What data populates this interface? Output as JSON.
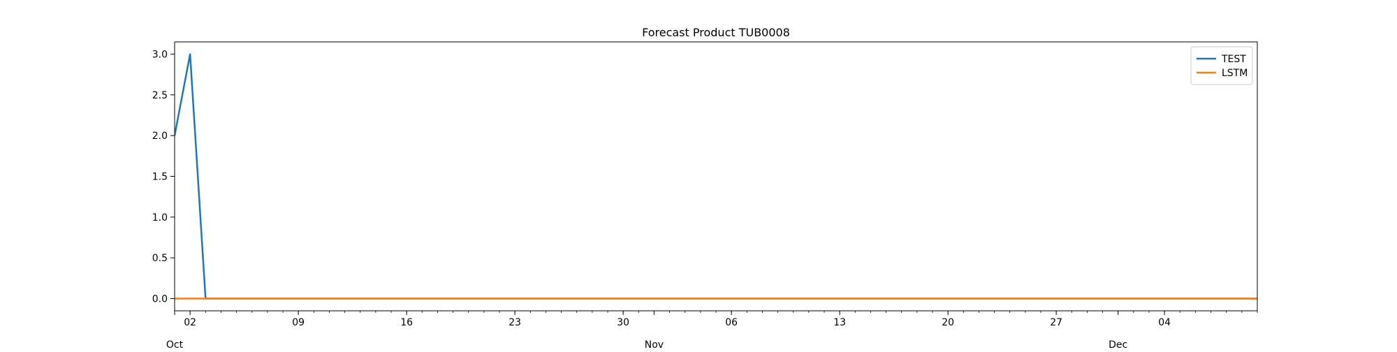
{
  "chart_data": {
    "type": "line",
    "title": "Forecast Product TUB0008",
    "xlabel": "",
    "ylabel": "",
    "x_range": [
      "2023-10-01",
      "2023-12-10"
    ],
    "ylim": [
      -0.15,
      3.15
    ],
    "y_ticks": [
      0.0,
      0.5,
      1.0,
      1.5,
      2.0,
      2.5,
      3.0
    ],
    "y_tick_labels": [
      "0.0",
      "0.5",
      "1.0",
      "1.5",
      "2.0",
      "2.5",
      "3.0"
    ],
    "x_major_ticks": [
      {
        "date": "2023-10-02",
        "label": "02"
      },
      {
        "date": "2023-10-09",
        "label": "09"
      },
      {
        "date": "2023-10-16",
        "label": "16"
      },
      {
        "date": "2023-10-23",
        "label": "23"
      },
      {
        "date": "2023-10-30",
        "label": "30"
      },
      {
        "date": "2023-11-06",
        "label": "06"
      },
      {
        "date": "2023-11-13",
        "label": "13"
      },
      {
        "date": "2023-11-20",
        "label": "20"
      },
      {
        "date": "2023-11-27",
        "label": "27"
      },
      {
        "date": "2023-12-04",
        "label": "04"
      }
    ],
    "x_month_labels": [
      {
        "date": "2023-10-01",
        "label": "Oct"
      },
      {
        "date": "2023-11-01",
        "label": "Nov"
      },
      {
        "date": "2023-12-01",
        "label": "Dec"
      }
    ],
    "legend_position": "top-right",
    "grid": false,
    "series": [
      {
        "name": "TEST",
        "color": "#1f77b4",
        "points": [
          {
            "x": "2023-10-01",
            "y": 2
          },
          {
            "x": "2023-10-02",
            "y": 3
          },
          {
            "x": "2023-10-03",
            "y": 0
          },
          {
            "x": "2023-12-10",
            "y": 0
          }
        ]
      },
      {
        "name": "LSTM",
        "color": "#ff7f0e",
        "points": [
          {
            "x": "2023-10-01",
            "y": 0
          },
          {
            "x": "2023-12-10",
            "y": 0
          }
        ]
      }
    ]
  }
}
